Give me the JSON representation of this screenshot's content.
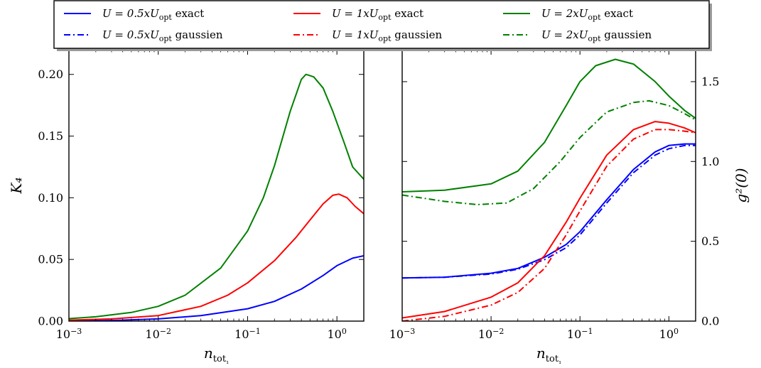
{
  "chart_data": [
    {
      "type": "line",
      "panel": "left",
      "xscale": "log",
      "xlim": [
        0.001,
        2.0
      ],
      "ylim": [
        0.0,
        0.22
      ],
      "xlabel": "n_tot₁",
      "ylabel": "K₄",
      "xticks": [
        0.001,
        0.01,
        0.1,
        1
      ],
      "xtick_labels": [
        {
          "base": "10",
          "exp": "−3"
        },
        {
          "base": "10",
          "exp": "−2"
        },
        {
          "base": "10",
          "exp": "−1"
        },
        {
          "base": "10",
          "exp": "0"
        }
      ],
      "yticks": [
        0.0,
        0.05,
        0.1,
        0.15,
        0.2
      ],
      "ytick_labels": [
        "0.00",
        "0.05",
        "0.10",
        "0.15",
        "0.20"
      ],
      "series": [
        {
          "name": "U = 0.5xU_opt exact",
          "color": "#0000ff",
          "style": "solid",
          "x": [
            0.001,
            0.003,
            0.01,
            0.03,
            0.1,
            0.2,
            0.4,
            0.7,
            1.0,
            1.5,
            2.0
          ],
          "y": [
            0.0,
            0.0005,
            0.0018,
            0.0045,
            0.01,
            0.016,
            0.026,
            0.037,
            0.045,
            0.051,
            0.053
          ]
        },
        {
          "name": "U = 1xU_opt exact",
          "color": "#ff0000",
          "style": "solid",
          "x": [
            0.001,
            0.003,
            0.01,
            0.03,
            0.06,
            0.1,
            0.2,
            0.35,
            0.5,
            0.7,
            0.9,
            1.05,
            1.3,
            1.6,
            2.0
          ],
          "y": [
            0.0008,
            0.0018,
            0.0045,
            0.012,
            0.021,
            0.031,
            0.049,
            0.068,
            0.082,
            0.095,
            0.102,
            0.103,
            0.1,
            0.093,
            0.087
          ]
        },
        {
          "name": "U = 2xU_opt exact",
          "color": "#008000",
          "style": "solid",
          "x": [
            0.001,
            0.002,
            0.005,
            0.01,
            0.02,
            0.05,
            0.1,
            0.15,
            0.2,
            0.3,
            0.4,
            0.45,
            0.55,
            0.7,
            0.9,
            1.2,
            1.5,
            2.0
          ],
          "y": [
            0.002,
            0.0035,
            0.007,
            0.012,
            0.021,
            0.043,
            0.073,
            0.1,
            0.126,
            0.17,
            0.196,
            0.2,
            0.198,
            0.189,
            0.17,
            0.145,
            0.125,
            0.115
          ]
        }
      ]
    },
    {
      "type": "line",
      "panel": "right",
      "xscale": "log",
      "xlim": [
        0.001,
        2.0
      ],
      "ylim": [
        0.0,
        1.7
      ],
      "xlabel": "n_tot₁",
      "ylabel": "g²(0)",
      "xticks": [
        0.001,
        0.01,
        0.1,
        1
      ],
      "xtick_labels": [
        {
          "base": "10",
          "exp": "−3"
        },
        {
          "base": "10",
          "exp": "−2"
        },
        {
          "base": "10",
          "exp": "−1"
        },
        {
          "base": "10",
          "exp": "0"
        }
      ],
      "yticks": [
        0.0,
        0.5,
        1.0,
        1.5
      ],
      "ytick_labels": [
        "0.0",
        "0.5",
        "1.0",
        "1.5"
      ],
      "series": [
        {
          "name": "U = 0.5xU_opt exact",
          "color": "#0000ff",
          "style": "solid",
          "x": [
            0.001,
            0.003,
            0.01,
            0.02,
            0.04,
            0.07,
            0.1,
            0.2,
            0.4,
            0.7,
            1.0,
            1.5,
            2.0
          ],
          "y": [
            0.27,
            0.275,
            0.3,
            0.33,
            0.4,
            0.48,
            0.56,
            0.76,
            0.95,
            1.06,
            1.1,
            1.11,
            1.11
          ]
        },
        {
          "name": "U = 0.5xU_opt gaussien",
          "color": "#0000ff",
          "style": "dashdot",
          "x": [
            0.001,
            0.003,
            0.01,
            0.02,
            0.04,
            0.07,
            0.1,
            0.2,
            0.4,
            0.7,
            1.0,
            1.5,
            2.0
          ],
          "y": [
            0.27,
            0.275,
            0.295,
            0.325,
            0.385,
            0.46,
            0.54,
            0.74,
            0.93,
            1.04,
            1.08,
            1.1,
            1.1
          ]
        },
        {
          "name": "U = 1xU_opt exact",
          "color": "#ff0000",
          "style": "solid",
          "x": [
            0.001,
            0.003,
            0.01,
            0.02,
            0.04,
            0.07,
            0.1,
            0.2,
            0.4,
            0.7,
            1.0,
            1.5,
            2.0
          ],
          "y": [
            0.02,
            0.06,
            0.15,
            0.24,
            0.41,
            0.62,
            0.77,
            1.04,
            1.2,
            1.25,
            1.24,
            1.21,
            1.18
          ]
        },
        {
          "name": "U = 1xU_opt gaussien",
          "color": "#ff0000",
          "style": "dashdot",
          "x": [
            0.001,
            0.003,
            0.01,
            0.02,
            0.04,
            0.07,
            0.1,
            0.2,
            0.4,
            0.7,
            1.0,
            1.5,
            2.0
          ],
          "y": [
            0.0,
            0.03,
            0.1,
            0.18,
            0.33,
            0.54,
            0.69,
            0.97,
            1.14,
            1.2,
            1.2,
            1.19,
            1.18
          ]
        },
        {
          "name": "U = 2xU_opt exact",
          "color": "#008000",
          "style": "solid",
          "x": [
            0.001,
            0.003,
            0.01,
            0.02,
            0.04,
            0.07,
            0.1,
            0.15,
            0.25,
            0.4,
            0.7,
            1.0,
            1.5,
            2.0
          ],
          "y": [
            0.81,
            0.82,
            0.86,
            0.94,
            1.12,
            1.35,
            1.5,
            1.6,
            1.64,
            1.61,
            1.5,
            1.41,
            1.32,
            1.27
          ]
        },
        {
          "name": "U = 2xU_opt gaussien",
          "color": "#008000",
          "style": "dashdot",
          "x": [
            0.001,
            0.003,
            0.007,
            0.015,
            0.03,
            0.06,
            0.1,
            0.2,
            0.4,
            0.6,
            1.0,
            1.5,
            2.0
          ],
          "y": [
            0.79,
            0.75,
            0.73,
            0.74,
            0.83,
            1.0,
            1.15,
            1.31,
            1.37,
            1.38,
            1.35,
            1.3,
            1.26
          ]
        }
      ]
    }
  ],
  "legend": {
    "placement": "top-center",
    "entries": [
      {
        "color": "#0000ff",
        "style": "solid",
        "pre": "U = 0.5x",
        "var": "U",
        "sub": "opt",
        "post": " exact"
      },
      {
        "color": "#ff0000",
        "style": "solid",
        "pre": "U = 1x",
        "var": "U",
        "sub": "opt",
        "post": " exact"
      },
      {
        "color": "#008000",
        "style": "solid",
        "pre": "U = 2x",
        "var": "U",
        "sub": "opt",
        "post": " exact"
      },
      {
        "color": "#0000ff",
        "style": "dashdot",
        "pre": "U = 0.5x",
        "var": "U",
        "sub": "opt",
        "post": " gaussien"
      },
      {
        "color": "#ff0000",
        "style": "dashdot",
        "pre": "U = 1x",
        "var": "U",
        "sub": "opt",
        "post": " gaussien"
      },
      {
        "color": "#008000",
        "style": "dashdot",
        "pre": "U = 2x",
        "var": "U",
        "sub": "opt",
        "post": " gaussien"
      }
    ]
  }
}
